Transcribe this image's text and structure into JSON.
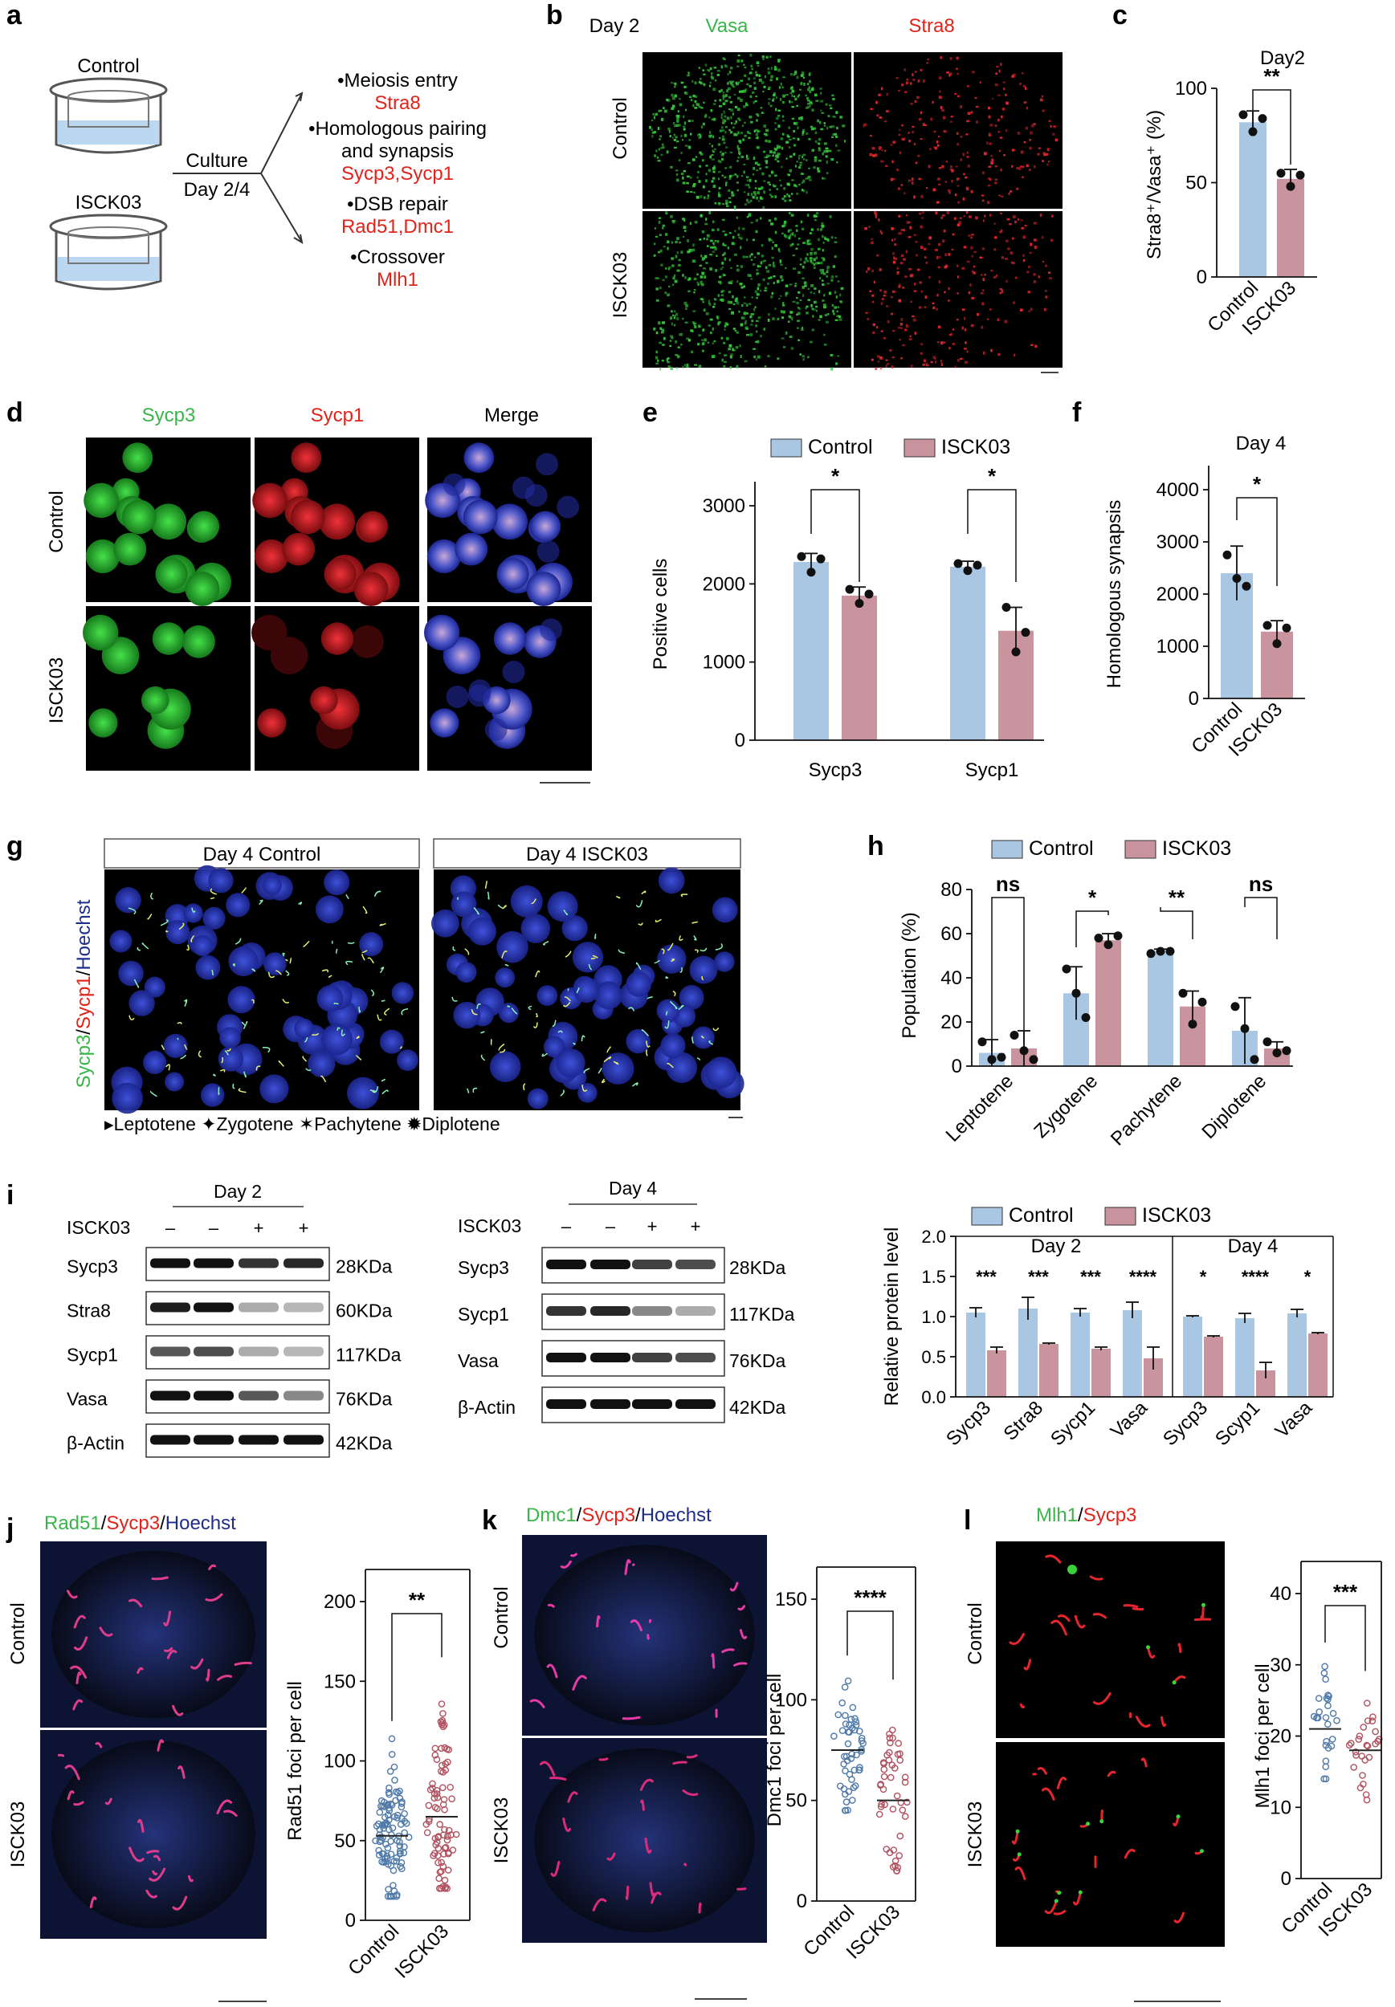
{
  "colors": {
    "control": "#a9c6e3",
    "iscck03": "#c9949d",
    "red_text": "#e2231a",
    "green_text": "#3ab54a",
    "blue_text": "#1f2d8a",
    "dot_control": "#4f79a8",
    "dot_iscck03": "#b0525f"
  },
  "panel_letters": [
    "a",
    "b",
    "c",
    "d",
    "e",
    "f",
    "g",
    "h",
    "i",
    "j",
    "k",
    "l"
  ],
  "a": {
    "control_label": "Control",
    "isck03_label": "ISCK03",
    "culture_label": "Culture",
    "day_label": "Day 2/4",
    "items": [
      {
        "label": "•Meiosis entry",
        "genes": "Stra8"
      },
      {
        "label": "•Homologous pairing",
        "label2": "and synapsis",
        "genes": "Sycp3,Sycp1"
      },
      {
        "label": "•DSB repair",
        "genes": "Rad51,Dmc1"
      },
      {
        "label": "•Crossover",
        "genes": "Mlh1"
      }
    ]
  },
  "b": {
    "day": "Day 2",
    "channel_green": "Vasa",
    "channel_red": "Stra8",
    "row_labels": [
      "Control",
      "ISCK03"
    ]
  },
  "d": {
    "columns": [
      "Sycp3",
      "Sycp1",
      "Merge"
    ],
    "row_labels": [
      "Control",
      "ISCK03"
    ]
  },
  "g": {
    "titles": [
      "Day 4 Control",
      "Day 4 ISCK03"
    ],
    "stain_parts": [
      "Sycp3",
      "/",
      "Sycp1",
      "/",
      "Hoechst"
    ],
    "legend": "▸Leptotene ✦Zygotene ✶Pachytene ✹Diplotene"
  },
  "i": {
    "day2": {
      "title": "Day 2",
      "treatment_label": "ISCK03",
      "lanes": [
        "–",
        "–",
        "+",
        "+"
      ],
      "proteins": [
        "Sycp3",
        "Stra8",
        "Sycp1",
        "Vasa",
        "β-Actin"
      ],
      "sizes": [
        "28KDa",
        "60KDa",
        "117KDa",
        "76KDa",
        "42KDa"
      ]
    },
    "day4": {
      "title": "Day 4",
      "treatment_label": "ISCK03",
      "lanes": [
        "–",
        "–",
        "+",
        "+"
      ],
      "proteins": [
        "Sycp3",
        "Sycp1",
        "Vasa",
        "β-Actin"
      ],
      "sizes": [
        "28KDa",
        "117KDa",
        "76KDa",
        "42KDa"
      ]
    }
  },
  "j": {
    "stain_parts": [
      "Rad51",
      "/",
      "Sycp3",
      "/",
      "Hoechst"
    ],
    "row_labels": [
      "Control",
      "ISCK03"
    ]
  },
  "k": {
    "stain_parts": [
      "Dmc1",
      "/",
      "Sycp3",
      "/",
      "Hoechst"
    ],
    "row_labels": [
      "Control",
      "ISCK03"
    ]
  },
  "l": {
    "stain_parts": [
      "Mlh1",
      "/",
      "Sycp3"
    ],
    "row_labels": [
      "Control",
      "ISCK03"
    ]
  },
  "chart_data": [
    {
      "id": "c",
      "type": "bar",
      "title": "Day2",
      "ylabel": "Stra8⁺/Vasa⁺ (%)",
      "categories": [
        "Control",
        "ISCK03"
      ],
      "values": [
        82,
        52
      ],
      "errors": [
        6,
        5
      ],
      "points": [
        [
          86,
          77,
          84
        ],
        [
          55,
          48,
          54
        ]
      ],
      "ylim": [
        0,
        100
      ],
      "yticks": [
        0,
        50,
        100
      ],
      "significance": [
        "**"
      ]
    },
    {
      "id": "e",
      "type": "bar",
      "legend": [
        "Control",
        "ISCK03"
      ],
      "ylabel": "Positive cells",
      "categories": [
        "Sycp3",
        "Sycp1"
      ],
      "series": [
        {
          "name": "Control",
          "values": [
            2280,
            2220
          ],
          "errors": [
            110,
            70
          ],
          "points": [
            [
              2350,
              2150,
              2320
            ],
            [
              2260,
              2170,
              2240
            ]
          ]
        },
        {
          "name": "ISCK03",
          "values": [
            1850,
            1400
          ],
          "errors": [
            110,
            300
          ],
          "points": [
            [
              1930,
              1750,
              1870
            ],
            [
              1700,
              1130,
              1380
            ]
          ]
        }
      ],
      "ylim": [
        0,
        3000
      ],
      "yticks": [
        0,
        1000,
        2000,
        3000
      ],
      "significance": [
        "*",
        "*"
      ]
    },
    {
      "id": "f",
      "type": "bar",
      "title": "Day 4",
      "ylabel": "Homologous synapsis",
      "categories": [
        "Control",
        "ISCK03"
      ],
      "values": [
        2400,
        1280
      ],
      "errors": [
        520,
        210
      ],
      "points": [
        [
          2750,
          2300,
          2150
        ],
        [
          1400,
          1050,
          1350
        ]
      ],
      "ylim": [
        0,
        4000
      ],
      "yticks": [
        0,
        1000,
        2000,
        3000,
        4000
      ],
      "significance": [
        "*"
      ]
    },
    {
      "id": "h",
      "type": "bar",
      "legend": [
        "Control",
        "ISCK03"
      ],
      "ylabel": "Population (%)",
      "categories": [
        "Leptotene",
        "Zygotene",
        "Pachytene",
        "Diplotene"
      ],
      "series": [
        {
          "name": "Control",
          "values": [
            6,
            33,
            52,
            16
          ],
          "errors": [
            6,
            12,
            1,
            15
          ],
          "points": [
            [
              11,
              3,
              4
            ],
            [
              44,
              33,
              22
            ],
            [
              51,
              52,
              52
            ],
            [
              27,
              17,
              3
            ]
          ]
        },
        {
          "name": "ISCK03",
          "values": [
            8,
            57,
            27,
            8
          ],
          "errors": [
            8,
            3,
            7,
            3
          ],
          "points": [
            [
              14,
              7,
              3
            ],
            [
              58,
              55,
              59
            ],
            [
              33,
              19,
              29
            ],
            [
              11,
              6,
              7
            ]
          ]
        }
      ],
      "ylim": [
        0,
        80
      ],
      "yticks": [
        0,
        20,
        40,
        60,
        80
      ],
      "significance": [
        "ns",
        "*",
        "**",
        "ns"
      ]
    },
    {
      "id": "i",
      "type": "bar",
      "legend": [
        "Control",
        "ISCK03"
      ],
      "ylabel": "Relative protein level",
      "groups": [
        "Day 2",
        "Day 4"
      ],
      "categories": [
        "Sycp3",
        "Stra8",
        "Sycp1",
        "Vasa",
        "Sycp3",
        "Scyp1",
        "Vasa"
      ],
      "series": [
        {
          "name": "Control",
          "values": [
            1.05,
            1.1,
            1.05,
            1.08,
            1.0,
            0.98,
            1.04
          ],
          "errors": [
            0.06,
            0.14,
            0.05,
            0.1,
            0.01,
            0.06,
            0.05
          ]
        },
        {
          "name": "ISCK03",
          "values": [
            0.58,
            0.66,
            0.6,
            0.48,
            0.75,
            0.33,
            0.79
          ],
          "errors": [
            0.04,
            0.01,
            0.02,
            0.14,
            0.01,
            0.1,
            0.01
          ]
        }
      ],
      "ylim": [
        0,
        2.0
      ],
      "yticks": [
        0.0,
        0.5,
        1.0,
        1.5,
        2.0
      ],
      "significance": [
        "***",
        "***",
        "***",
        "****",
        "*",
        "****",
        "*"
      ]
    },
    {
      "id": "j",
      "type": "scatter",
      "ylabel": "Rad51 foci per cell",
      "categories": [
        "Control",
        "ISCK03"
      ],
      "n": [
        100,
        80
      ],
      "means": [
        53,
        65
      ],
      "ranges": [
        [
          15,
          120
        ],
        [
          20,
          160
        ]
      ],
      "ylim": [
        0,
        200
      ],
      "yticks": [
        0,
        50,
        100,
        150,
        200
      ],
      "significance": [
        "**"
      ]
    },
    {
      "id": "k",
      "type": "scatter",
      "ylabel": "Dmc1 foci per cell",
      "categories": [
        "Control",
        "ISCK03"
      ],
      "n": [
        50,
        45
      ],
      "means": [
        75,
        50
      ],
      "ranges": [
        [
          45,
          118
        ],
        [
          15,
          106
        ]
      ],
      "ylim": [
        0,
        150
      ],
      "yticks": [
        0,
        50,
        100,
        150
      ],
      "significance": [
        "****"
      ]
    },
    {
      "id": "l",
      "type": "scatter",
      "ylabel": "Mlh1 foci per cell",
      "categories": [
        "Control",
        "ISCK03"
      ],
      "n": [
        26,
        26
      ],
      "means": [
        21,
        18
      ],
      "ranges": [
        [
          14,
          32
        ],
        [
          11,
          28
        ]
      ],
      "ylim": [
        0,
        40
      ],
      "yticks": [
        0,
        10,
        20,
        30,
        40
      ],
      "significance": [
        "***"
      ]
    }
  ]
}
